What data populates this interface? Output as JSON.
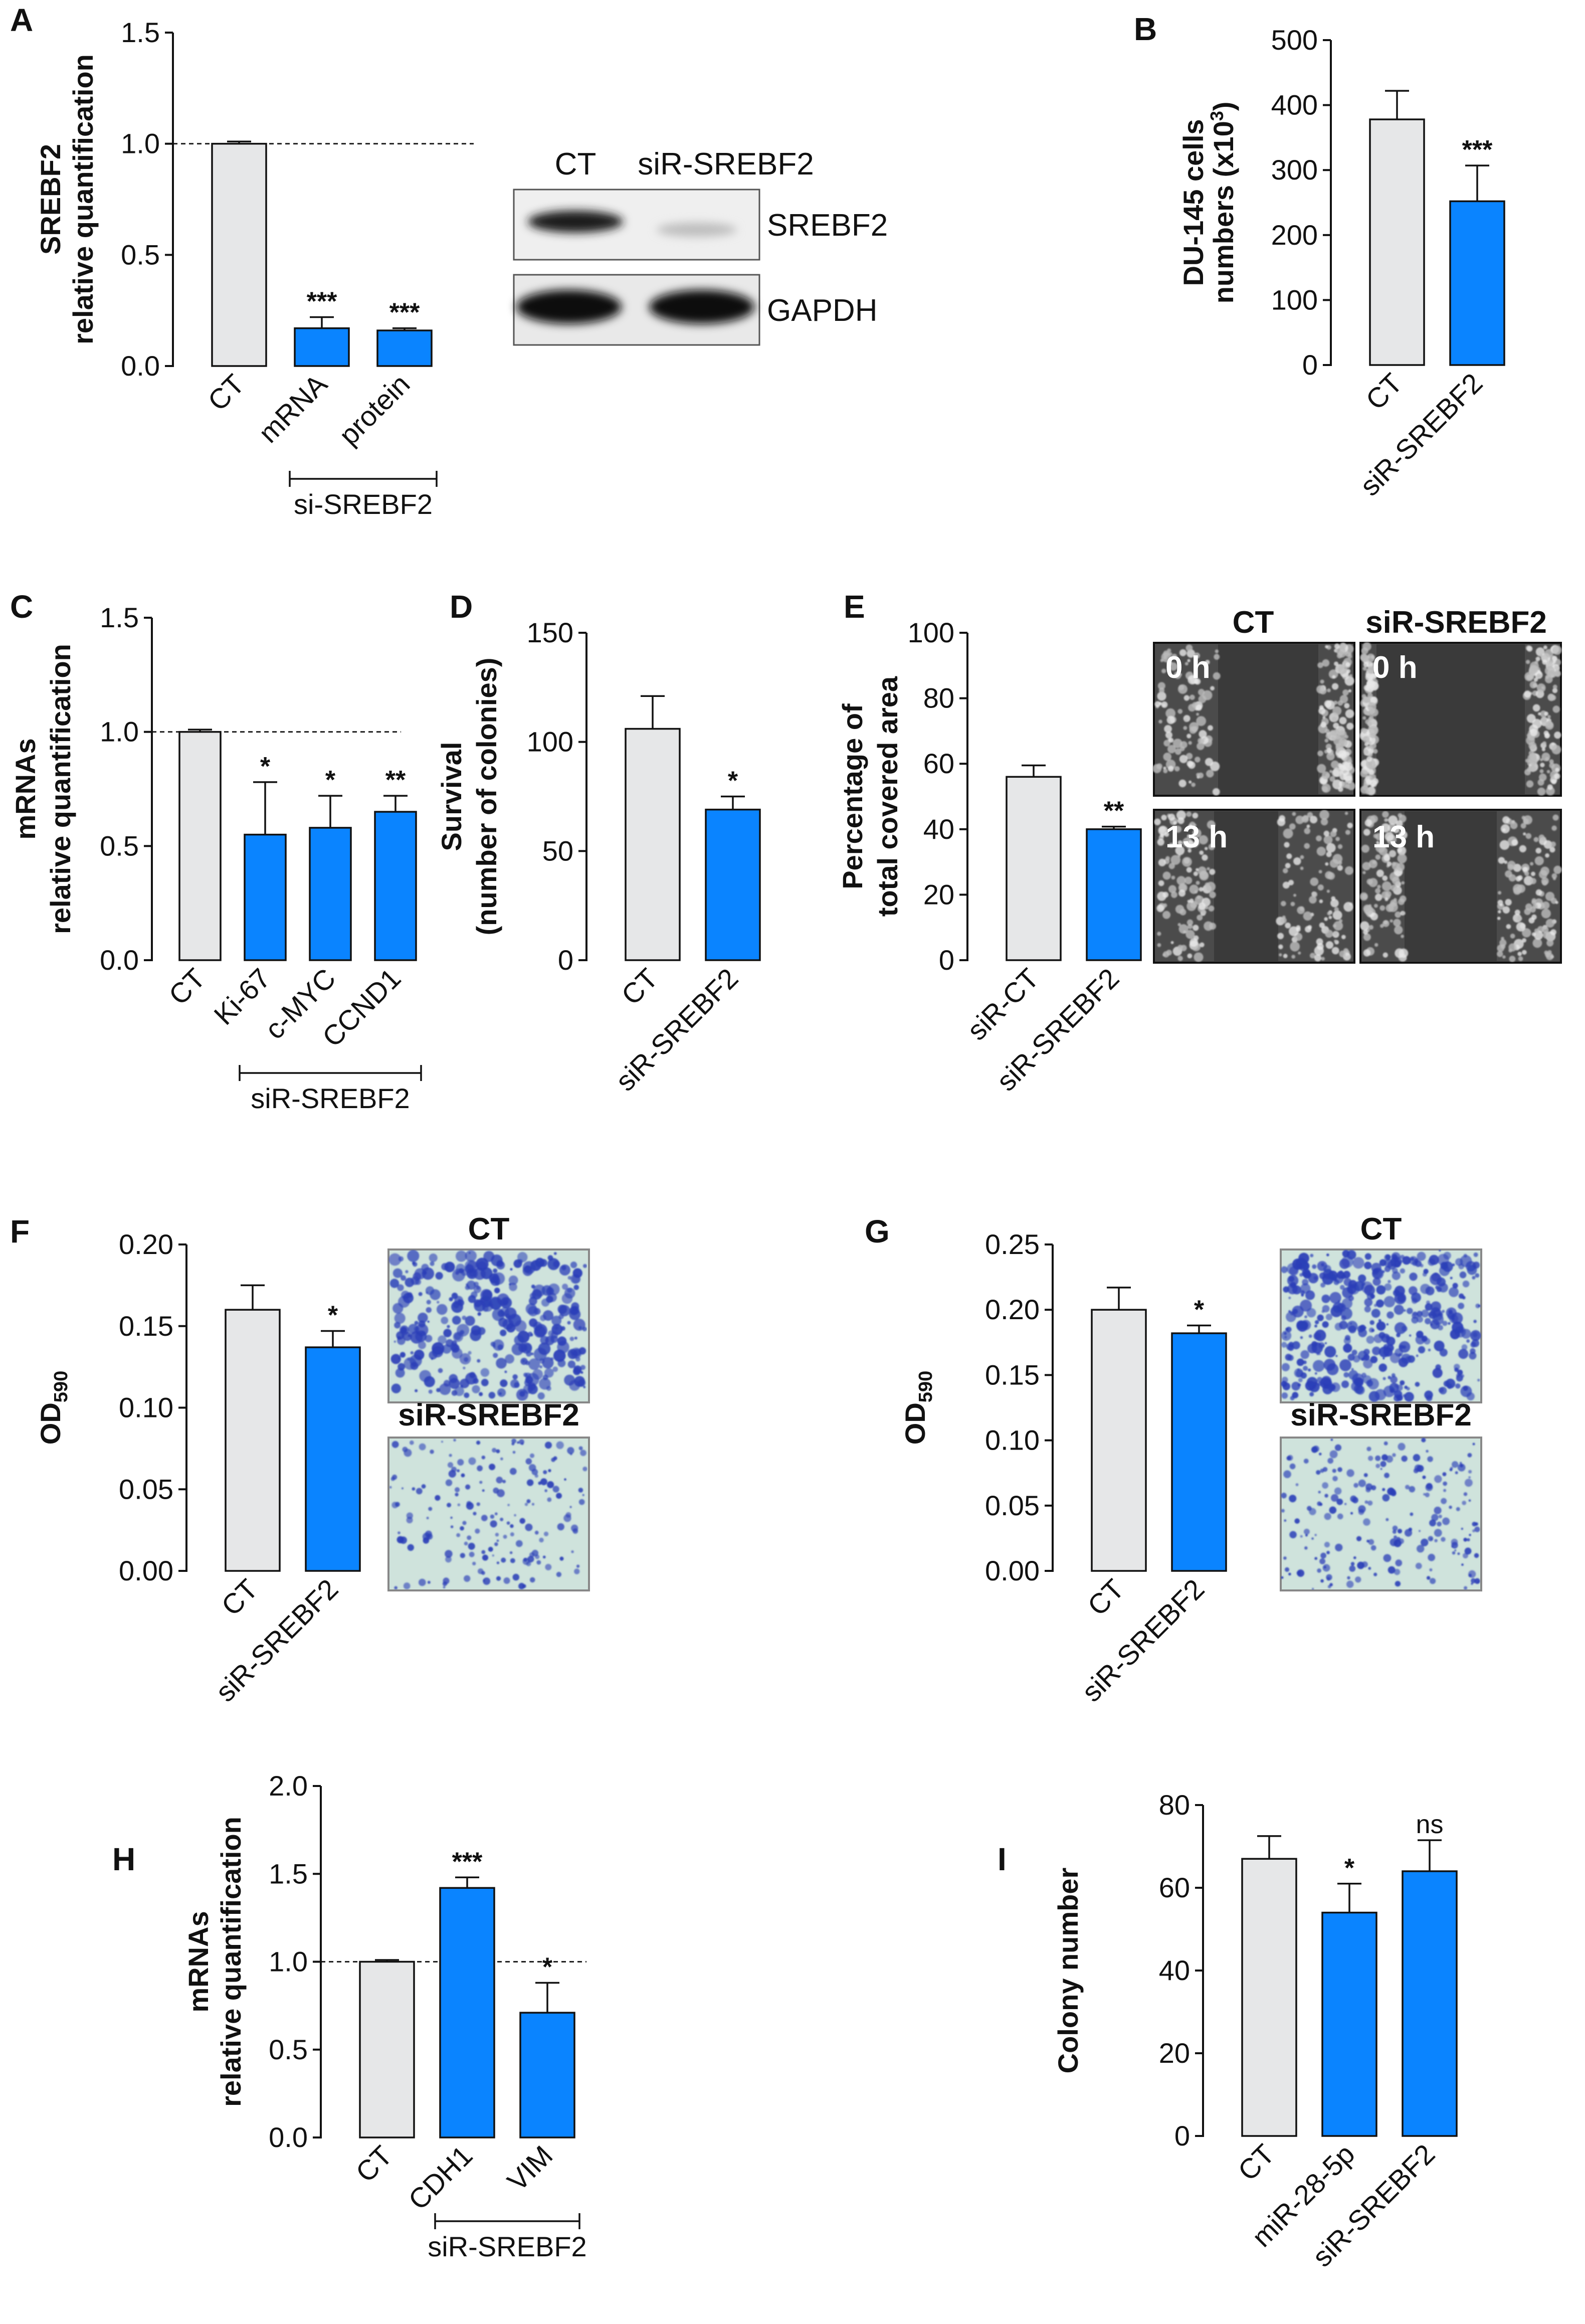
{
  "colors": {
    "control": "#e6e7e8",
    "treated": "#0a84ff",
    "axis": "#111111",
    "micro_bg": "#4b4b4b",
    "micro_cells": "#bdbdbd",
    "transwell_bg": "#cfe3dc",
    "transwell_cells": "#2b3fb8"
  },
  "chart_data": [
    {
      "panel": "A",
      "type": "bar",
      "ylabel": [
        "SREBF2",
        "relative quantification"
      ],
      "categories": [
        "CT",
        "mRNA",
        "protein"
      ],
      "group_label": "si-SREBF2",
      "values": [
        1.0,
        0.17,
        0.16
      ],
      "errors": [
        0.01,
        0.05,
        0.01
      ],
      "significance": [
        "",
        "***",
        "***"
      ],
      "ylim": [
        0,
        1.5
      ],
      "yticks": [
        "0.0",
        "0.5",
        "1.0",
        "1.5"
      ],
      "reference_line": 1.0
    },
    {
      "panel": "B",
      "type": "bar",
      "ylabel": [
        "DU-145 cells",
        "numbers (x10³)"
      ],
      "categories": [
        "CT",
        "siR-SREBF2"
      ],
      "values": [
        378,
        252
      ],
      "errors": [
        44,
        55
      ],
      "significance": [
        "",
        "***"
      ],
      "ylim": [
        0,
        500
      ],
      "yticks": [
        "0",
        "100",
        "200",
        "300",
        "400",
        "500"
      ]
    },
    {
      "panel": "C",
      "type": "bar",
      "ylabel": [
        "mRNAs",
        "relative quantification"
      ],
      "categories": [
        "CT",
        "Ki-67",
        "c-MYC",
        "CCND1"
      ],
      "group_label": "siR-SREBF2",
      "values": [
        1.0,
        0.55,
        0.58,
        0.65
      ],
      "errors": [
        0.01,
        0.23,
        0.14,
        0.07
      ],
      "significance": [
        "",
        "*",
        "*",
        "**"
      ],
      "ylim": [
        0,
        1.5
      ],
      "yticks": [
        "0.0",
        "0.5",
        "1.0",
        "1.5"
      ],
      "reference_line": 1.0
    },
    {
      "panel": "D",
      "type": "bar",
      "ylabel": [
        "Survival",
        "(number of colonies)"
      ],
      "categories": [
        "CT",
        "siR-SREBF2"
      ],
      "values": [
        106,
        69
      ],
      "errors": [
        15,
        6
      ],
      "significance": [
        "",
        "*"
      ],
      "ylim": [
        0,
        150
      ],
      "yticks": [
        "0",
        "50",
        "100",
        "150"
      ]
    },
    {
      "panel": "E",
      "type": "bar",
      "ylabel": [
        "Percentage of",
        "total covered area"
      ],
      "categories": [
        "siR-CT",
        "siR-SREBF2"
      ],
      "values": [
        56,
        40
      ],
      "errors": [
        3.5,
        0.8
      ],
      "significance": [
        "",
        "**"
      ],
      "ylim": [
        0,
        100
      ],
      "yticks": [
        "0",
        "20",
        "40",
        "60",
        "80",
        "100"
      ]
    },
    {
      "panel": "F",
      "type": "bar",
      "ylabel": [
        "OD590"
      ],
      "categories": [
        "CT",
        "siR-SREBF2"
      ],
      "values": [
        0.16,
        0.137
      ],
      "errors": [
        0.015,
        0.01
      ],
      "significance": [
        "",
        "*"
      ],
      "ylim": [
        0,
        0.2
      ],
      "yticks": [
        "0.00",
        "0.05",
        "0.10",
        "0.15",
        "0.20"
      ]
    },
    {
      "panel": "G",
      "type": "bar",
      "ylabel": [
        "OD590"
      ],
      "categories": [
        "CT",
        "siR-SREBF2"
      ],
      "values": [
        0.2,
        0.182
      ],
      "errors": [
        0.017,
        0.006
      ],
      "significance": [
        "",
        "*"
      ],
      "ylim": [
        0,
        0.25
      ],
      "yticks": [
        "0.00",
        "0.05",
        "0.10",
        "0.15",
        "0.20",
        "0.25"
      ]
    },
    {
      "panel": "H",
      "type": "bar",
      "ylabel": [
        "mRNAs",
        "relative quantification"
      ],
      "categories": [
        "CT",
        "CDH1",
        "VIM"
      ],
      "group_label": "siR-SREBF2",
      "values": [
        1.0,
        1.42,
        0.71
      ],
      "errors": [
        0.01,
        0.06,
        0.17
      ],
      "significance": [
        "",
        "***",
        "*"
      ],
      "ylim": [
        0,
        2.0
      ],
      "yticks": [
        "0.0",
        "0.5",
        "1.0",
        "1.5",
        "2.0"
      ],
      "reference_line": 1.0
    },
    {
      "panel": "I",
      "type": "bar",
      "ylabel": [
        "Colony number"
      ],
      "categories": [
        "CT",
        "miR-28-5p",
        "siR-SREBF2"
      ],
      "values": [
        67,
        54,
        64
      ],
      "errors": [
        5.5,
        7,
        7.5
      ],
      "significance": [
        "",
        "*",
        "ns"
      ],
      "ylim": [
        0,
        80
      ],
      "yticks": [
        "0",
        "20",
        "40",
        "60",
        "80"
      ]
    }
  ],
  "blot": {
    "columns": [
      "CT",
      "siR-SREBF2"
    ],
    "rows": [
      "SREBF2",
      "GAPDH"
    ]
  },
  "wound": {
    "columns": [
      "CT",
      "siR-SREBF2"
    ],
    "times": [
      "0 h",
      "13 h"
    ]
  },
  "transwell_F": {
    "titles": [
      "CT",
      "siR-SREBF2"
    ]
  },
  "transwell_G": {
    "titles": [
      "CT",
      "siR-SREBF2"
    ]
  }
}
